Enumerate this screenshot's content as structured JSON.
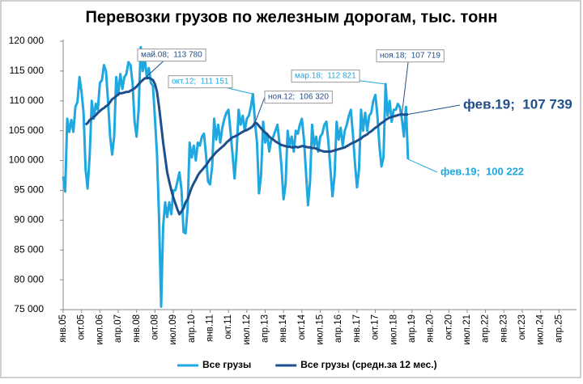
{
  "chart_data": {
    "type": "line",
    "title": "Перевозки грузов по железным дорогам, тыс. тонн",
    "categories": [
      "янв.05",
      null,
      null,
      null,
      null,
      null,
      null,
      null,
      null,
      "окт.05",
      null,
      null,
      null,
      null,
      null,
      null,
      null,
      null,
      "июл.06",
      null,
      null,
      null,
      null,
      null,
      null,
      null,
      null,
      "апр.07",
      null,
      null,
      null,
      null,
      null,
      null,
      null,
      null,
      "янв.08",
      null,
      null,
      null,
      null,
      null,
      null,
      null,
      null,
      "окт.08",
      null,
      null,
      null,
      null,
      null,
      null,
      null,
      null,
      "июл.09",
      null,
      null,
      null,
      null,
      null,
      null,
      null,
      null,
      "апр.10",
      null,
      null,
      null,
      null,
      null,
      null,
      null,
      null,
      "янв.11",
      null,
      null,
      null,
      null,
      null,
      null,
      null,
      null,
      "окт.11",
      null,
      null,
      null,
      null,
      null,
      null,
      null,
      null,
      "июл.12",
      null,
      null,
      null,
      null,
      null,
      null,
      null,
      null,
      "апр.13",
      null,
      null,
      null,
      null,
      null,
      null,
      null,
      null,
      "янв.14",
      null,
      null,
      null,
      null,
      null,
      null,
      null,
      null,
      "окт.14",
      null,
      null,
      null,
      null,
      null,
      null,
      null,
      null,
      "июл.15",
      null,
      null,
      null,
      null,
      null,
      null,
      null,
      null,
      "апр.16",
      null,
      null,
      null,
      null,
      null,
      null,
      null,
      null,
      "янв.17",
      null,
      null,
      null,
      null,
      null,
      null,
      null,
      null,
      "окт.17",
      null,
      null,
      null,
      null,
      null,
      null,
      null,
      null,
      "июл.18",
      null,
      null,
      null,
      null,
      null,
      null,
      null,
      null,
      "апр.19",
      null,
      null,
      null,
      null,
      null,
      null,
      null,
      null,
      "янв.20",
      null,
      null,
      null,
      null,
      null,
      null,
      null,
      null,
      "окт.20",
      null,
      null,
      null,
      null,
      null,
      null,
      null,
      null,
      "июл.21",
      null,
      null,
      null,
      null,
      null,
      null,
      null,
      null,
      "апр.22",
      null,
      null,
      null,
      null,
      null,
      null,
      null,
      null,
      "янв.23",
      null,
      null,
      null,
      null,
      null,
      null,
      null,
      null,
      "окт.23",
      null,
      null,
      null,
      null,
      null,
      null,
      null,
      null,
      "июл.24",
      null,
      null,
      null,
      null,
      null,
      null,
      null,
      null,
      "апр.25",
      null,
      null,
      null,
      null,
      null,
      null,
      null,
      null
    ],
    "series": [
      {
        "name": "Все грузы",
        "color": "#1fa8e0",
        "values": [
          97300,
          94800,
          107000,
          104800,
          106800,
          104800,
          109000,
          109800,
          114000,
          111500,
          108000,
          98500,
          95300,
          101000,
          110000,
          107000,
          109500,
          108500,
          113000,
          113500,
          116000,
          115000,
          110000,
          104000,
          101000,
          104000,
          114000,
          111000,
          114500,
          112000,
          114000,
          114500,
          116500,
          116000,
          113000,
          106500,
          104000,
          108500,
          119000,
          115000,
          117000,
          114000,
          115500,
          113000,
          112500,
          107000,
          101000,
          90500,
          75500,
          89000,
          93000,
          90500,
          93000,
          91000,
          95000,
          95000,
          96500,
          98000,
          95000,
          88000,
          87800,
          92000,
          103000,
          100500,
          102500,
          100000,
          103000,
          102500,
          104000,
          104500,
          101000,
          96500,
          96000,
          99000,
          107000,
          103500,
          106000,
          103000,
          105500,
          107000,
          108000,
          108500,
          105000,
          101000,
          97000,
          101500,
          108500,
          106000,
          107500,
          105000,
          107000,
          107500,
          109000,
          111151,
          106500,
          103000,
          94500,
          97500,
          106500,
          103000,
          104500,
          101500,
          103500,
          104000,
          105000,
          106000,
          103000,
          99000,
          93500,
          96000,
          105000,
          102500,
          104000,
          101500,
          105000,
          104500,
          106000,
          107000,
          103500,
          98000,
          92500,
          96500,
          106000,
          102500,
          104000,
          101500,
          104000,
          104500,
          106000,
          106500,
          103000,
          98500,
          94000,
          97500,
          106500,
          103500,
          105500,
          102500,
          105000,
          106000,
          107500,
          108500,
          104500,
          99500,
          95500,
          98500,
          108500,
          105000,
          108000,
          105000,
          107500,
          108000,
          110000,
          111000,
          107500,
          102500,
          99000,
          100500,
          112821,
          107500,
          110000,
          106500,
          108500,
          108500,
          109500,
          109000,
          107000,
          104000,
          109000,
          100222,
          null,
          null,
          null,
          null,
          null,
          null,
          null,
          null,
          null,
          null,
          null,
          null,
          null,
          null,
          null,
          null,
          null,
          null,
          null,
          null,
          null,
          null,
          null,
          null,
          null,
          null,
          null,
          null,
          null,
          null,
          null,
          null,
          null,
          null,
          null,
          null,
          null,
          null,
          null,
          null,
          null,
          null,
          null,
          null,
          null,
          null,
          null,
          null,
          null,
          null,
          null,
          null,
          null,
          null,
          null,
          null,
          null,
          null,
          null,
          null,
          null,
          null,
          null,
          null,
          null,
          null,
          null,
          null,
          null,
          null,
          null,
          null,
          null,
          null,
          null,
          null,
          null,
          null,
          null,
          null,
          null,
          null
        ]
      },
      {
        "name": "Все грузы (средн.за 12 мес.)",
        "color": "#1f4e8c",
        "values": [
          null,
          null,
          null,
          null,
          null,
          null,
          null,
          null,
          null,
          null,
          null,
          106000,
          106300,
          106800,
          107000,
          107300,
          107600,
          108000,
          108300,
          108600,
          108800,
          109100,
          109300,
          109800,
          110300,
          110500,
          110800,
          111100,
          111300,
          111300,
          111400,
          111500,
          111500,
          111700,
          111900,
          112100,
          112400,
          112800,
          113200,
          113500,
          113780,
          113800,
          113850,
          113700,
          113500,
          112800,
          111500,
          109000,
          106000,
          103000,
          100500,
          98000,
          96500,
          95000,
          93800,
          92800,
          91800,
          91000,
          91500,
          92000,
          93000,
          93500,
          94500,
          95500,
          96200,
          96800,
          97500,
          98000,
          98400,
          98800,
          99200,
          99700,
          100200,
          100600,
          101000,
          101400,
          101700,
          102000,
          102300,
          102600,
          103000,
          103300,
          103600,
          103900,
          104000,
          104200,
          104400,
          104600,
          104800,
          105000,
          105100,
          105300,
          105500,
          105800,
          106320,
          106200,
          105800,
          105400,
          105000,
          104700,
          104400,
          104000,
          103700,
          103500,
          103200,
          103000,
          102800,
          102600,
          102500,
          102400,
          102300,
          102300,
          102200,
          102200,
          102300,
          102200,
          102300,
          102400,
          102400,
          102300,
          102200,
          102200,
          102100,
          102100,
          102000,
          101800,
          101700,
          101600,
          101500,
          101500,
          101500,
          101500,
          101600,
          101700,
          101800,
          101900,
          102000,
          102100,
          102200,
          102400,
          102600,
          102800,
          103000,
          103100,
          103300,
          103500,
          103700,
          104000,
          104200,
          104400,
          104700,
          104900,
          105200,
          105500,
          105700,
          106000,
          106300,
          106500,
          106800,
          107000,
          107200,
          107300,
          107400,
          107500,
          107600,
          107700,
          107719,
          107700,
          107700,
          107739,
          null,
          null,
          null,
          null,
          null,
          null,
          null,
          null,
          null,
          null,
          null,
          null,
          null,
          null,
          null,
          null,
          null,
          null,
          null,
          null,
          null,
          null,
          null,
          null,
          null,
          null,
          null,
          null,
          null,
          null,
          null,
          null,
          null,
          null,
          null,
          null,
          null,
          null,
          null,
          null,
          null,
          null,
          null,
          null,
          null,
          null,
          null,
          null,
          null,
          null,
          null,
          null,
          null,
          null,
          null,
          null,
          null,
          null,
          null,
          null,
          null,
          null,
          null,
          null,
          null,
          null,
          null,
          null,
          null,
          null,
          null,
          null,
          null,
          null,
          null,
          null,
          null,
          null,
          null,
          null,
          null,
          null
        ]
      }
    ],
    "ylim": [
      75000,
      120000
    ],
    "yticks": [
      {
        "value": 75000,
        "label": "75 000"
      },
      {
        "value": 80000,
        "label": "80 000"
      },
      {
        "value": 85000,
        "label": "85 000"
      },
      {
        "value": 90000,
        "label": "90 000"
      },
      {
        "value": 95000,
        "label": "95 000"
      },
      {
        "value": 100000,
        "label": "100 000"
      },
      {
        "value": 105000,
        "label": "105 000"
      },
      {
        "value": 110000,
        "label": "110 000"
      },
      {
        "value": 115000,
        "label": "115 000"
      },
      {
        "value": 120000,
        "label": "120 000"
      }
    ],
    "grid": false,
    "legend": "bottom",
    "annotations": [
      "май.08;  113 780",
      "окт.12;  111 151",
      "ноя.12;  106 320",
      "мар.18;  112 821",
      "ноя.18;  107 719",
      "фев.19;  107 739",
      "фев.19;  100 222"
    ]
  }
}
